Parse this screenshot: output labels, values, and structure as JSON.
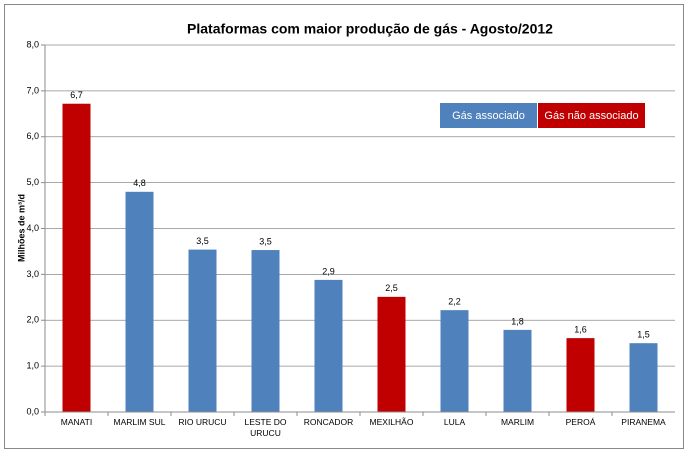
{
  "chart_data": {
    "type": "bar",
    "title": "Plataformas com maior produção de gás - Agosto/2012",
    "y_label": "Milhões de m³/d",
    "categories": [
      "MANATI",
      "MARLIM SUL",
      "RIO URUCU",
      "LESTE DO URUCU",
      "RONCADOR",
      "MEXILHÃO",
      "LULA",
      "MARLIM",
      "PEROÁ",
      "PIRANEMA"
    ],
    "values": [
      6.72,
      4.8,
      3.54,
      3.53,
      2.88,
      2.51,
      2.22,
      1.79,
      1.61,
      1.5
    ],
    "value_labels": [
      "6,7",
      "4,8",
      "3,5",
      "3,5",
      "2,9",
      "2,5",
      "2,2",
      "1,8",
      "1,6",
      "1,5"
    ],
    "colors": [
      "#c00000",
      "#4f81bd",
      "#4f81bd",
      "#4f81bd",
      "#4f81bd",
      "#c00000",
      "#4f81bd",
      "#4f81bd",
      "#c00000",
      "#4f81bd"
    ],
    "legend": [
      {
        "name": "Gás associado",
        "color": "#4f81bd"
      },
      {
        "name": "Gás não associado",
        "color": "#c00000"
      }
    ],
    "ylim": [
      0,
      8
    ],
    "yticks": [
      {
        "value": 0,
        "label": "0,0"
      },
      {
        "value": 1,
        "label": "1,0"
      },
      {
        "value": 2,
        "label": "2,0"
      },
      {
        "value": 3,
        "label": "3,0"
      },
      {
        "value": 4,
        "label": "4,0"
      },
      {
        "value": 5,
        "label": "5,0"
      },
      {
        "value": 6,
        "label": "6,0"
      },
      {
        "value": 7,
        "label": "7,0"
      },
      {
        "value": 8,
        "label": "8,0"
      }
    ],
    "grid": true
  }
}
